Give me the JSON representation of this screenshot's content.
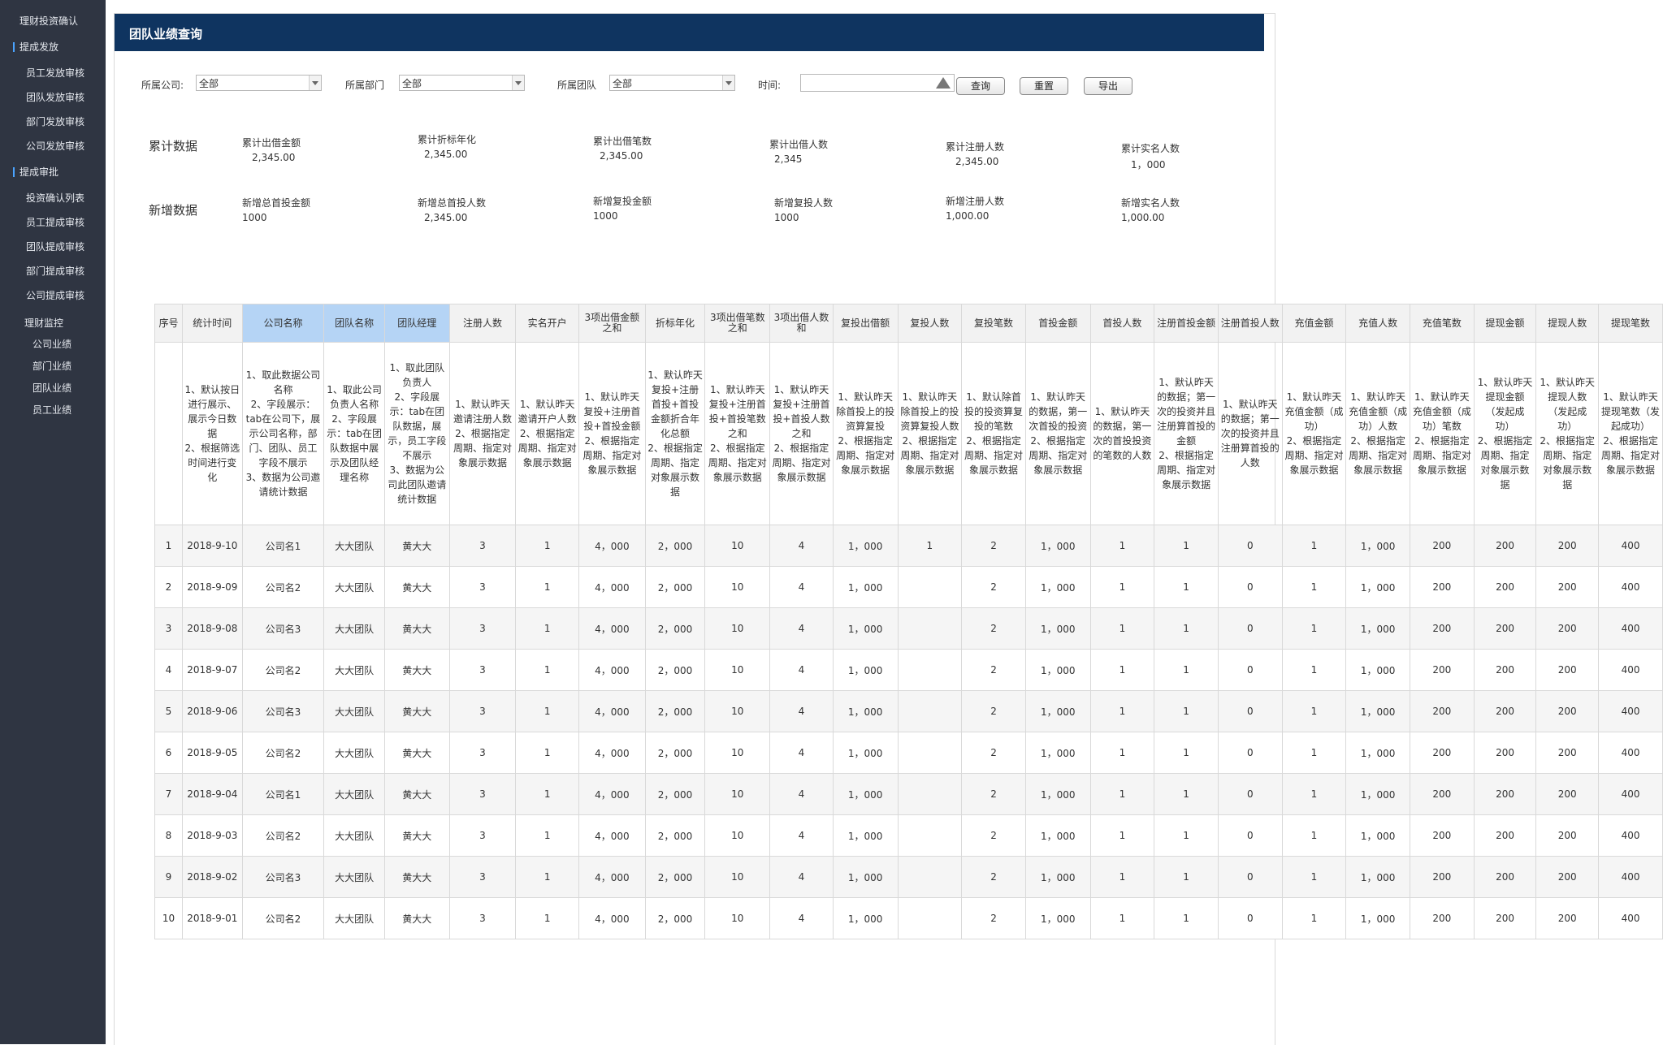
{
  "sidebar": {
    "items": [
      {
        "label": "理财投资确认",
        "kind": "head",
        "marked": false
      },
      {
        "label": "提成发放",
        "kind": "head",
        "marked": true
      },
      {
        "label": "员工发放审核",
        "kind": "sub"
      },
      {
        "label": "团队发放审核",
        "kind": "sub"
      },
      {
        "label": "部门发放审核",
        "kind": "sub"
      },
      {
        "label": "公司发放审核",
        "kind": "sub"
      },
      {
        "label": "提成审批",
        "kind": "head",
        "marked": true
      },
      {
        "label": "投资确认列表",
        "kind": "sub"
      },
      {
        "label": "员工提成审核",
        "kind": "sub"
      },
      {
        "label": "团队提成审核",
        "kind": "sub"
      },
      {
        "label": "部门提成审核",
        "kind": "sub"
      },
      {
        "label": "公司提成审核",
        "kind": "sub"
      },
      {
        "label": "理财监控",
        "kind": "head",
        "marked": false
      },
      {
        "label": "公司业绩",
        "kind": "sub2"
      },
      {
        "label": "部门业绩",
        "kind": "sub2"
      },
      {
        "label": "团队业绩",
        "kind": "sub2"
      },
      {
        "label": "员工业绩",
        "kind": "sub2"
      }
    ]
  },
  "header": {
    "title": "团队业绩查询"
  },
  "filters": {
    "company_label": "所属公司:",
    "company_value": "全部",
    "department_label": "所属部门",
    "department_value": "全部",
    "team_label": "所属团队",
    "team_value": "全部",
    "time_label": "时间:",
    "time_value": "",
    "query_button": "查询",
    "reset_button": "重置",
    "export_button": "导出"
  },
  "stats": {
    "cumulative": {
      "title": "累计数据",
      "items": [
        {
          "label": "累计出借金额",
          "value": "2,345.00"
        },
        {
          "label": "累计折标年化",
          "value": "2,345.00"
        },
        {
          "label": "累计出借笔数",
          "value": "2,345.00"
        },
        {
          "label": "累计出借人数",
          "value": "2,345"
        },
        {
          "label": "累计注册人数",
          "value": "2,345.00"
        },
        {
          "label": "累计实名人数",
          "value": "1，000"
        }
      ]
    },
    "new": {
      "title": "新增数据",
      "items": [
        {
          "label": "新增总首投金额",
          "value": "1000"
        },
        {
          "label": "新增总首投人数",
          "value": "2,345.00"
        },
        {
          "label": "新增复投金额",
          "value": "1000"
        },
        {
          "label": "新增复投人数",
          "value": "1000"
        },
        {
          "label": "新增注册人数",
          "value": "1,000.00"
        },
        {
          "label": "新增实名人数",
          "value": "1,000.00"
        }
      ]
    }
  },
  "table": {
    "columns": [
      {
        "label": "序号",
        "highlight": false
      },
      {
        "label": "统计时间",
        "highlight": false
      },
      {
        "label": "公司名称",
        "highlight": true
      },
      {
        "label": "团队名称",
        "highlight": true
      },
      {
        "label": "团队经理",
        "highlight": true
      },
      {
        "label": "注册人数",
        "highlight": false
      },
      {
        "label": "实名开户",
        "highlight": false
      },
      {
        "label": "3项出借金额之和",
        "highlight": false
      },
      {
        "label": "折标年化",
        "highlight": false
      },
      {
        "label": "3项出借笔数之和",
        "highlight": false
      },
      {
        "label": "3项出借人数和",
        "highlight": false
      },
      {
        "label": "复投出借额",
        "highlight": false
      },
      {
        "label": "复投人数",
        "highlight": false
      },
      {
        "label": "复投笔数",
        "highlight": false
      },
      {
        "label": "首投金额",
        "highlight": false
      },
      {
        "label": "首投人数",
        "highlight": false
      },
      {
        "label": "注册首投金额",
        "highlight": false
      },
      {
        "label": "注册首投人数",
        "highlight": false
      },
      {
        "label": "充值金额",
        "highlight": false
      },
      {
        "label": "充值人数",
        "highlight": false
      },
      {
        "label": "充值笔数",
        "highlight": false
      },
      {
        "label": "提现金额",
        "highlight": false
      },
      {
        "label": "提现人数",
        "highlight": false
      },
      {
        "label": "提现笔数",
        "highlight": false
      }
    ],
    "descriptions": [
      "",
      "1、默认按日进行展示、展示今日数据\n2、根据筛选时间进行变化",
      "1、取此数据公司名称\n2、字段展示：tab在公司下，展示公司名称，部门、团队、员工字段不展示\n3、数据为公司邀请统计数据",
      "1、取此公司负责人名称\n2、字段展示：tab在团队数据中展示及团队经理名称",
      "1、取此团队负责人\n2、字段展示：tab在团队数据，展示，员工字段不展示\n3、数据为公司此团队邀请统计数据",
      "1、默认昨天邀请注册人数\n2、根据指定周期、指定对象展示数据",
      "1、默认昨天邀请开户人数\n2、根据指定周期、指定对象展示数据",
      "1、默认昨天复投+注册首投+首投金额\n2、根据指定周期、指定对象展示数据",
      "1、默认昨天复投+注册首投+首投金额折合年化总额\n2、根据指定周期、指定对象展示数据",
      "1、默认昨天复投+注册首投+首投笔数之和\n2、根据指定周期、指定对象展示数据",
      "1、默认昨天复投+注册首投+首投人数之和\n2、根据指定周期、指定对象展示数据",
      "1、默认昨天除首投上的投资算复投\n2、根据指定周期、指定对象展示数据",
      "1、默认昨天除首投上的投资算复投人数\n2、根据指定周期、指定对象展示数据",
      "1、默认除首投的投资算复投的笔数\n2、根据指定周期、指定对象展示数据",
      "1、默认昨天的数据，第一次首投的投资\n2、根据指定周期、指定对象展示数据",
      "1、默认昨天的数据，第一次的首投投资的笔数的人数",
      "1、默认昨天的数据；第一次的投资并且注册算首投的金额\n2、根据指定周期、指定对象展示数据",
      "1、默认昨天的数据；第一次的投资并且注册算首投的人数",
      "1、默认昨天充值金额（成功）\n2、根据指定周期、指定对象展示数据",
      "1、默认昨天充值金额（成功）人数\n2、根据指定周期、指定对象展示数据",
      "1、默认昨天充值金额（成功）笔数\n2、根据指定周期、指定对象展示数据",
      "1、默认昨天提现金额（发起成功）\n2、根据指定周期、指定对象展示数据",
      "1、默认昨天提现人数（发起成功）\n2、根据指定周期、指定对象展示数据",
      "1、默认昨天提现笔数（发起成功）\n2、根据指定周期、指定对象展示数据"
    ],
    "rows": [
      [
        "1",
        "2018-9-10",
        "公司名1",
        "大大团队",
        "黄大大",
        "3",
        "1",
        "4，000",
        "2，000",
        "10",
        "4",
        "1，000",
        "1",
        "2",
        "1，000",
        "1",
        "1",
        "0",
        "1",
        "1，000",
        "200",
        "200",
        "200",
        "400"
      ],
      [
        "2",
        "2018-9-09",
        "公司名2",
        "大大团队",
        "黄大大",
        "3",
        "1",
        "4，000",
        "2，000",
        "10",
        "4",
        "1，000",
        "",
        "2",
        "1，000",
        "1",
        "1",
        "0",
        "1",
        "1，000",
        "200",
        "200",
        "200",
        "400"
      ],
      [
        "3",
        "2018-9-08",
        "公司名3",
        "大大团队",
        "黄大大",
        "3",
        "1",
        "4，000",
        "2，000",
        "10",
        "4",
        "1，000",
        "",
        "2",
        "1，000",
        "1",
        "1",
        "0",
        "1",
        "1，000",
        "200",
        "200",
        "200",
        "400"
      ],
      [
        "4",
        "2018-9-07",
        "公司名2",
        "大大团队",
        "黄大大",
        "3",
        "1",
        "4，000",
        "2，000",
        "10",
        "4",
        "1，000",
        "",
        "2",
        "1，000",
        "1",
        "1",
        "0",
        "1",
        "1，000",
        "200",
        "200",
        "200",
        "400"
      ],
      [
        "5",
        "2018-9-06",
        "公司名3",
        "大大团队",
        "黄大大",
        "3",
        "1",
        "4，000",
        "2，000",
        "10",
        "4",
        "1，000",
        "",
        "2",
        "1，000",
        "1",
        "1",
        "0",
        "1",
        "1，000",
        "200",
        "200",
        "200",
        "400"
      ],
      [
        "6",
        "2018-9-05",
        "公司名2",
        "大大团队",
        "黄大大",
        "3",
        "1",
        "4，000",
        "2，000",
        "10",
        "4",
        "1，000",
        "",
        "2",
        "1，000",
        "1",
        "1",
        "0",
        "1",
        "1，000",
        "200",
        "200",
        "200",
        "400"
      ],
      [
        "7",
        "2018-9-04",
        "公司名1",
        "大大团队",
        "黄大大",
        "3",
        "1",
        "4，000",
        "2，000",
        "10",
        "4",
        "1，000",
        "",
        "2",
        "1，000",
        "1",
        "1",
        "0",
        "1",
        "1，000",
        "200",
        "200",
        "200",
        "400"
      ],
      [
        "8",
        "2018-9-03",
        "公司名2",
        "大大团队",
        "黄大大",
        "3",
        "1",
        "4，000",
        "2，000",
        "10",
        "4",
        "1，000",
        "",
        "2",
        "1，000",
        "1",
        "1",
        "0",
        "1",
        "1，000",
        "200",
        "200",
        "200",
        "400"
      ],
      [
        "9",
        "2018-9-02",
        "公司名3",
        "大大团队",
        "黄大大",
        "3",
        "1",
        "4，000",
        "2，000",
        "10",
        "4",
        "1，000",
        "",
        "2",
        "1，000",
        "1",
        "1",
        "0",
        "1",
        "1，000",
        "200",
        "200",
        "200",
        "400"
      ],
      [
        "10",
        "2018-9-01",
        "公司名2",
        "大大团队",
        "黄大大",
        "3",
        "1",
        "4，000",
        "2，000",
        "10",
        "4",
        "1，000",
        "",
        "2",
        "1，000",
        "1",
        "1",
        "0",
        "1",
        "1，000",
        "200",
        "200",
        "200",
        "400"
      ]
    ]
  }
}
